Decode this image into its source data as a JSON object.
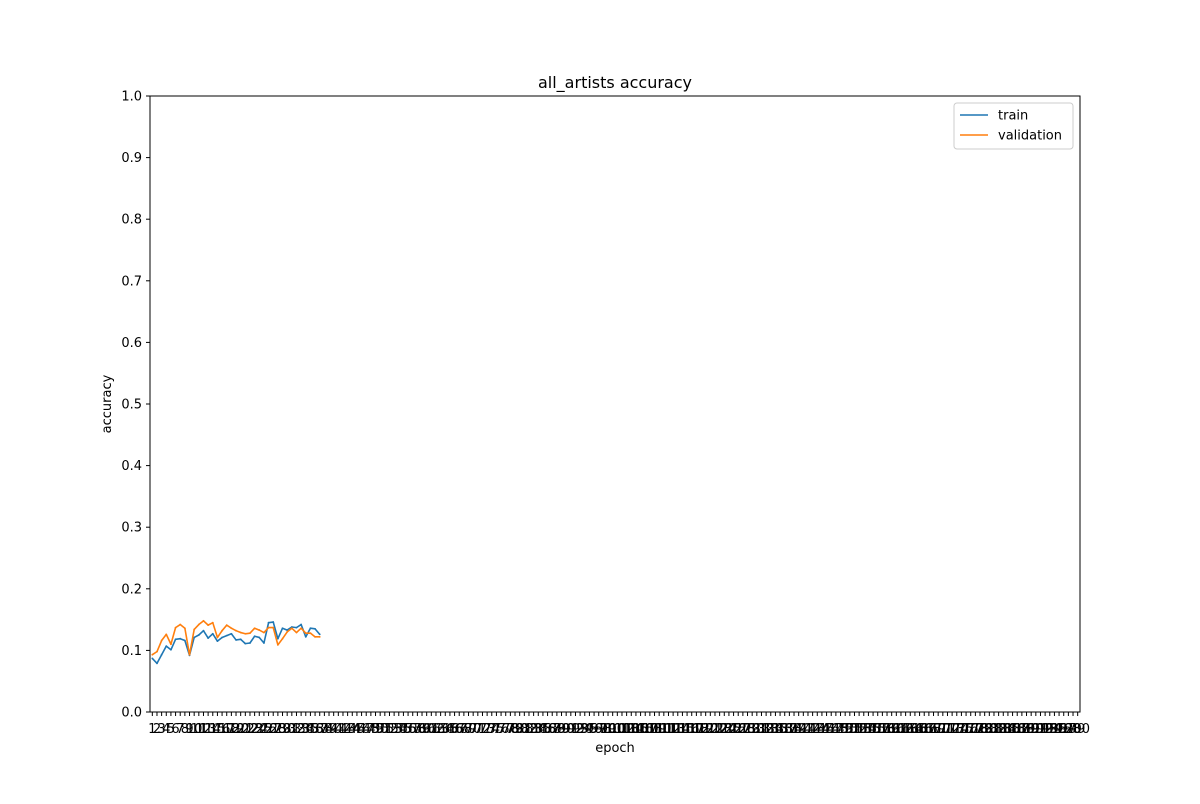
{
  "chart_data": {
    "type": "line",
    "title": "all_artists accuracy",
    "xlabel": "epoch",
    "ylabel": "accuracy",
    "xlim": [
      0.5,
      200.5
    ],
    "ylim": [
      0,
      1
    ],
    "x_ticks": [
      1,
      200
    ],
    "y_ticks": [
      0.0,
      0.1,
      0.2,
      0.3,
      0.4,
      0.5,
      0.6,
      0.7,
      0.8,
      0.9,
      1.0
    ],
    "y_tick_labels": [
      "0.0",
      "0.1",
      "0.2",
      "0.3",
      "0.4",
      "0.5",
      "0.6",
      "0.7",
      "0.8",
      "0.9",
      "1.0"
    ],
    "grid": false,
    "legend_position": "top-right",
    "series": [
      {
        "name": "train",
        "color": "#1f77b4",
        "values": [
          0.087,
          0.079,
          0.093,
          0.107,
          0.101,
          0.118,
          0.119,
          0.116,
          0.092,
          0.121,
          0.125,
          0.132,
          0.12,
          0.127,
          0.115,
          0.121,
          0.124,
          0.127,
          0.117,
          0.118,
          0.111,
          0.112,
          0.123,
          0.121,
          0.112,
          0.145,
          0.146,
          0.119,
          0.136,
          0.133,
          0.138,
          0.137,
          0.142,
          0.122,
          0.136,
          0.135,
          0.126
        ]
      },
      {
        "name": "validation",
        "color": "#ff7f0e",
        "values": [
          0.093,
          0.098,
          0.116,
          0.126,
          0.11,
          0.137,
          0.142,
          0.136,
          0.093,
          0.134,
          0.142,
          0.148,
          0.141,
          0.145,
          0.121,
          0.132,
          0.141,
          0.136,
          0.132,
          0.129,
          0.127,
          0.128,
          0.136,
          0.133,
          0.129,
          0.137,
          0.137,
          0.109,
          0.119,
          0.13,
          0.136,
          0.129,
          0.136,
          0.128,
          0.128,
          0.122,
          0.122
        ]
      }
    ]
  }
}
